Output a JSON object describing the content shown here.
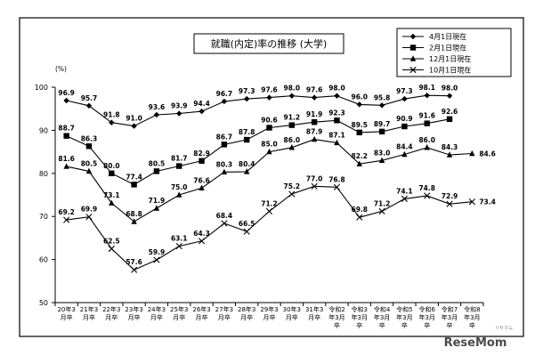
{
  "chart_data": {
    "type": "line",
    "title": "就職(内定)率の推移 (大学)",
    "y_unit": "(%)",
    "ylim": [
      50,
      100
    ],
    "yticks": [
      50,
      60,
      70,
      80,
      90,
      100
    ],
    "grid": false,
    "legend_position": "top-right",
    "categories": [
      [
        "20年3",
        "月卒"
      ],
      [
        "21年3",
        "月卒"
      ],
      [
        "22年3",
        "月卒"
      ],
      [
        "23年3",
        "月卒"
      ],
      [
        "24年3",
        "月卒"
      ],
      [
        "25年3",
        "月卒"
      ],
      [
        "26年3",
        "月卒"
      ],
      [
        "27年3",
        "月卒"
      ],
      [
        "28年3",
        "月卒"
      ],
      [
        "29年3",
        "月卒"
      ],
      [
        "30年3",
        "月卒"
      ],
      [
        "31年3",
        "月卒"
      ],
      [
        "令和2",
        "年3月",
        "卒"
      ],
      [
        "令和3",
        "年3月",
        "卒"
      ],
      [
        "令和4",
        "年3月",
        "卒"
      ],
      [
        "令和5",
        "年3月",
        "卒"
      ],
      [
        "令和6",
        "年3月",
        "卒"
      ],
      [
        "令和7",
        "年3月",
        "卒"
      ],
      [
        "令和8",
        "年3月",
        "卒"
      ]
    ],
    "series": [
      {
        "name": "4月1日現在",
        "marker": "diamond",
        "values": [
          96.9,
          95.7,
          91.8,
          91.0,
          93.6,
          93.9,
          94.4,
          96.7,
          97.3,
          97.6,
          98.0,
          97.6,
          98.0,
          96.0,
          95.8,
          97.3,
          98.1,
          98.0,
          null
        ],
        "labels": [
          "96.9",
          "95.7",
          "91.8",
          "91.0",
          "93.6",
          "93.9",
          "94.4",
          "96.7",
          "97.3",
          "97.6",
          "98.0",
          "97.6",
          "98.0",
          "96.0",
          "95.8",
          "97.3",
          "98.1",
          "98.0",
          ""
        ]
      },
      {
        "name": "2月1日現在",
        "marker": "square",
        "values": [
          88.7,
          86.3,
          80.0,
          77.4,
          80.5,
          81.7,
          82.9,
          86.7,
          87.8,
          90.6,
          91.2,
          91.9,
          92.3,
          89.5,
          89.7,
          90.9,
          91.6,
          92.6,
          null
        ],
        "labels": [
          "88.7",
          "86.3",
          "80.0",
          "77.4",
          "80.5",
          "81.7",
          "82.9",
          "86.7",
          "87.8",
          "90.6",
          "91.2",
          "91.9",
          "92.3",
          "89.5",
          "89.7",
          "90.9",
          "91.6",
          "92.6",
          ""
        ]
      },
      {
        "name": "12月1日現在",
        "marker": "triangle",
        "values": [
          81.6,
          80.5,
          73.1,
          68.8,
          71.9,
          75.0,
          76.6,
          80.3,
          80.4,
          85.0,
          86.0,
          87.9,
          87.1,
          82.2,
          83.0,
          84.4,
          86.0,
          84.3,
          84.6
        ],
        "labels": [
          "81.6",
          "80.5",
          "73.1",
          "68.8",
          "71.9",
          "75.0",
          "76.6",
          "80.3",
          "80.4",
          "85.0",
          "86.0",
          "87.9",
          "87.1",
          "82.2",
          "83.0",
          "84.4",
          "86.0",
          "84.3",
          "84.6"
        ]
      },
      {
        "name": "10月1日現在",
        "marker": "x",
        "values": [
          69.2,
          69.9,
          62.5,
          57.6,
          59.9,
          63.1,
          64.3,
          68.4,
          66.5,
          71.2,
          75.2,
          77.0,
          76.8,
          69.8,
          71.2,
          74.1,
          74.8,
          72.9,
          73.4
        ],
        "labels": [
          "69.2",
          "69.9",
          "62.5",
          "57.6",
          "59.9",
          "63.1",
          "64.3",
          "68.4",
          "66.5",
          "71.2",
          "75.2",
          "77.0",
          "76.8",
          "69.8",
          "71.2",
          "74.1",
          "74.8",
          "72.9",
          "73.4"
        ]
      }
    ]
  },
  "watermark": {
    "logo_text": "ReseMom",
    "logo_small": "リセマム"
  }
}
